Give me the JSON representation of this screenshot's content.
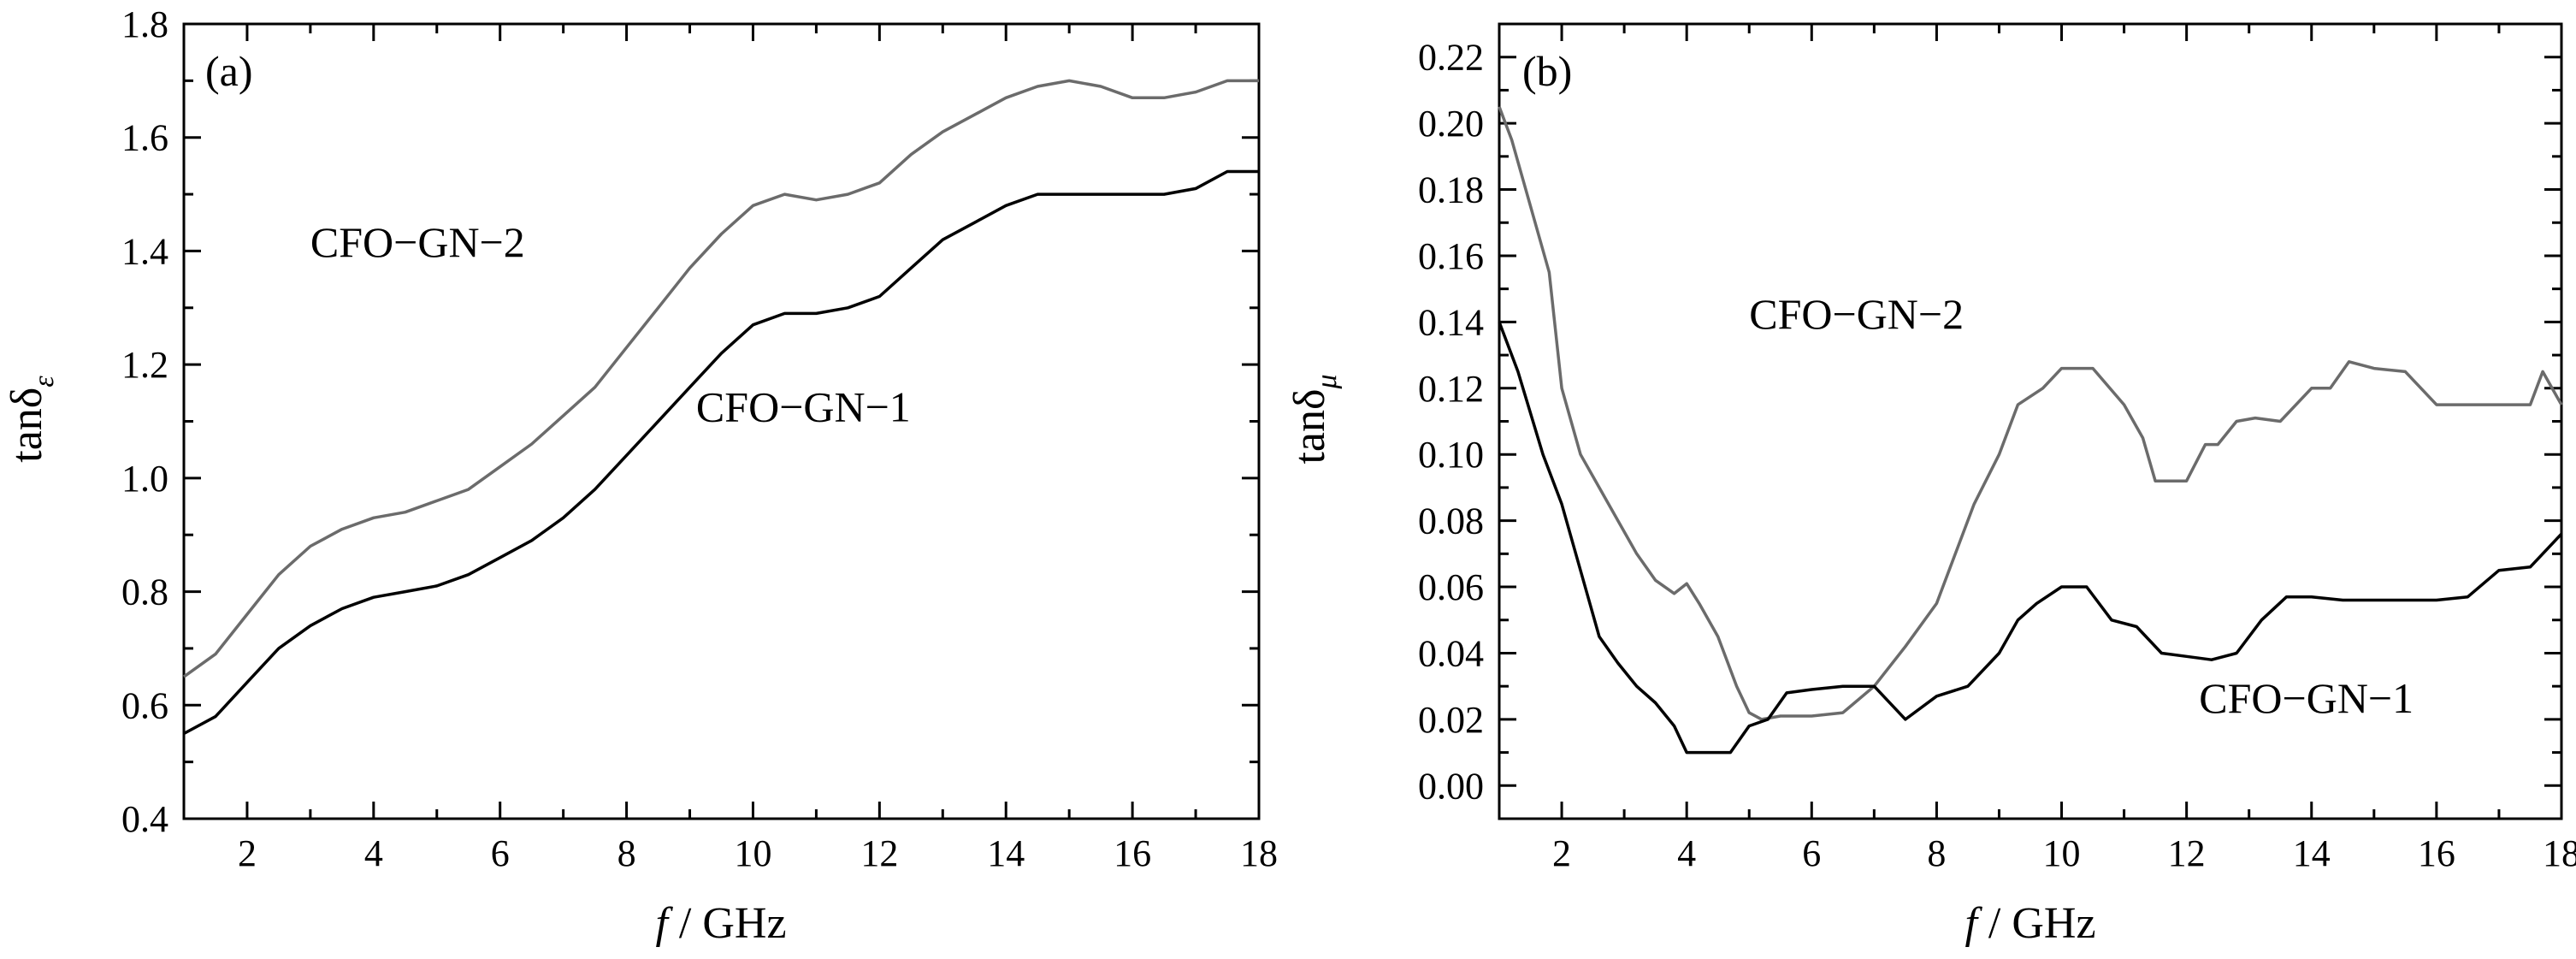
{
  "chart_data": [
    {
      "type": "line",
      "panel": "(a)",
      "ylabel": "tanδε",
      "ylabel_main": "tanδ",
      "ylabel_sub": "ε",
      "xlabel": "f / GHz",
      "xlabel_f": "f",
      "xlabel_rest": " / GHz",
      "xlim": [
        1,
        18
      ],
      "ylim": [
        0.4,
        1.8
      ],
      "xticks": [
        2,
        4,
        6,
        8,
        10,
        12,
        14,
        16,
        18
      ],
      "yticks": [
        0.4,
        0.6,
        0.8,
        1.0,
        1.2,
        1.4,
        1.6,
        1.8
      ],
      "ytick_labels": [
        "0.4",
        "0.6",
        "0.8",
        "1.0",
        "1.2",
        "1.4",
        "1.6",
        "1.8"
      ],
      "grid": false,
      "series": [
        {
          "name": "CFO−GN−2",
          "color": "#6b6b6b",
          "x": [
            1.0,
            1.5,
            2.0,
            2.5,
            3.0,
            3.5,
            4.0,
            4.5,
            5.0,
            5.5,
            6.0,
            6.5,
            7.0,
            7.5,
            8.0,
            8.5,
            9.0,
            9.5,
            10.0,
            10.5,
            11.0,
            11.5,
            12.0,
            12.5,
            13.0,
            13.5,
            14.0,
            14.5,
            15.0,
            15.5,
            16.0,
            16.5,
            17.0,
            17.5,
            18.0
          ],
          "values": [
            0.65,
            0.69,
            0.76,
            0.83,
            0.88,
            0.91,
            0.93,
            0.94,
            0.96,
            0.98,
            1.02,
            1.06,
            1.11,
            1.16,
            1.23,
            1.3,
            1.37,
            1.43,
            1.48,
            1.5,
            1.49,
            1.5,
            1.52,
            1.57,
            1.61,
            1.64,
            1.67,
            1.69,
            1.7,
            1.69,
            1.67,
            1.67,
            1.68,
            1.7,
            1.7
          ]
        },
        {
          "name": "CFO−GN−1",
          "color": "#000000",
          "x": [
            1.0,
            1.5,
            2.0,
            2.5,
            3.0,
            3.5,
            4.0,
            4.5,
            5.0,
            5.5,
            6.0,
            6.5,
            7.0,
            7.5,
            8.0,
            8.5,
            9.0,
            9.5,
            10.0,
            10.5,
            11.0,
            11.5,
            12.0,
            12.5,
            13.0,
            13.5,
            14.0,
            14.5,
            15.0,
            15.5,
            16.0,
            16.5,
            17.0,
            17.5,
            18.0
          ],
          "values": [
            0.55,
            0.58,
            0.64,
            0.7,
            0.74,
            0.77,
            0.79,
            0.8,
            0.81,
            0.83,
            0.86,
            0.89,
            0.93,
            0.98,
            1.04,
            1.1,
            1.16,
            1.22,
            1.27,
            1.29,
            1.29,
            1.3,
            1.32,
            1.37,
            1.42,
            1.45,
            1.48,
            1.5,
            1.5,
            1.5,
            1.5,
            1.5,
            1.51,
            1.54,
            1.54
          ]
        }
      ],
      "annotations": [
        {
          "text": "CFO−GN−2",
          "x": 3.0,
          "y": 1.39
        },
        {
          "text": "CFO−GN−1",
          "x": 9.1,
          "y": 1.1
        }
      ]
    },
    {
      "type": "line",
      "panel": "(b)",
      "ylabel": "tanδμ",
      "ylabel_main": "tanδ",
      "ylabel_sub": "μ",
      "xlabel": "f / GHz",
      "xlabel_f": "f",
      "xlabel_rest": " / GHz",
      "xlim": [
        1,
        18
      ],
      "ylim": [
        -0.01,
        0.23
      ],
      "xticks": [
        2,
        4,
        6,
        8,
        10,
        12,
        14,
        16,
        18
      ],
      "yticks": [
        0.0,
        0.02,
        0.04,
        0.06,
        0.08,
        0.1,
        0.12,
        0.14,
        0.16,
        0.18,
        0.2,
        0.22
      ],
      "ytick_labels": [
        "0.00",
        "0.02",
        "0.04",
        "0.06",
        "0.08",
        "0.10",
        "0.12",
        "0.14",
        "0.16",
        "0.18",
        "0.20",
        "0.22"
      ],
      "grid": false,
      "series": [
        {
          "name": "CFO−GN−2",
          "color": "#6b6b6b",
          "x": [
            1.0,
            1.2,
            1.5,
            1.8,
            2.0,
            2.3,
            2.6,
            2.9,
            3.2,
            3.5,
            3.8,
            4.0,
            4.2,
            4.5,
            4.8,
            5.0,
            5.2,
            5.5,
            6.0,
            6.5,
            7.0,
            7.5,
            8.0,
            8.3,
            8.6,
            9.0,
            9.3,
            9.7,
            10.0,
            10.5,
            11.0,
            11.3,
            11.5,
            12.0,
            12.3,
            12.5,
            12.8,
            13.1,
            13.5,
            14.0,
            14.3,
            14.6,
            15.0,
            15.5,
            16.0,
            16.5,
            17.0,
            17.5,
            17.7,
            18.0
          ],
          "values": [
            0.205,
            0.195,
            0.175,
            0.155,
            0.12,
            0.1,
            0.09,
            0.08,
            0.07,
            0.062,
            0.058,
            0.061,
            0.055,
            0.045,
            0.03,
            0.022,
            0.02,
            0.021,
            0.021,
            0.022,
            0.03,
            0.042,
            0.055,
            0.07,
            0.085,
            0.1,
            0.115,
            0.12,
            0.126,
            0.126,
            0.115,
            0.105,
            0.092,
            0.092,
            0.103,
            0.103,
            0.11,
            0.111,
            0.11,
            0.12,
            0.12,
            0.128,
            0.126,
            0.125,
            0.115,
            0.115,
            0.115,
            0.115,
            0.125,
            0.115
          ]
        },
        {
          "name": "CFO−GN−1",
          "color": "#000000",
          "x": [
            1.0,
            1.3,
            1.7,
            2.0,
            2.3,
            2.6,
            2.9,
            3.2,
            3.5,
            3.8,
            4.0,
            4.3,
            4.7,
            5.0,
            5.3,
            5.6,
            6.0,
            6.5,
            7.0,
            7.5,
            8.0,
            8.5,
            9.0,
            9.3,
            9.6,
            10.0,
            10.4,
            10.8,
            11.2,
            11.6,
            12.0,
            12.4,
            12.8,
            13.2,
            13.6,
            14.0,
            14.5,
            15.0,
            15.5,
            16.0,
            16.5,
            17.0,
            17.5,
            18.0
          ],
          "values": [
            0.14,
            0.125,
            0.1,
            0.085,
            0.065,
            0.045,
            0.037,
            0.03,
            0.025,
            0.018,
            0.01,
            0.01,
            0.01,
            0.018,
            0.02,
            0.028,
            0.029,
            0.03,
            0.03,
            0.02,
            0.027,
            0.03,
            0.04,
            0.05,
            0.055,
            0.06,
            0.06,
            0.05,
            0.048,
            0.04,
            0.039,
            0.038,
            0.04,
            0.05,
            0.057,
            0.057,
            0.056,
            0.056,
            0.056,
            0.056,
            0.057,
            0.065,
            0.066,
            0.076
          ]
        }
      ],
      "annotations": [
        {
          "text": "CFO−GN−2",
          "x": 5.0,
          "y": 0.138
        },
        {
          "text": "CFO−GN−1",
          "x": 12.2,
          "y": 0.022
        }
      ]
    }
  ]
}
